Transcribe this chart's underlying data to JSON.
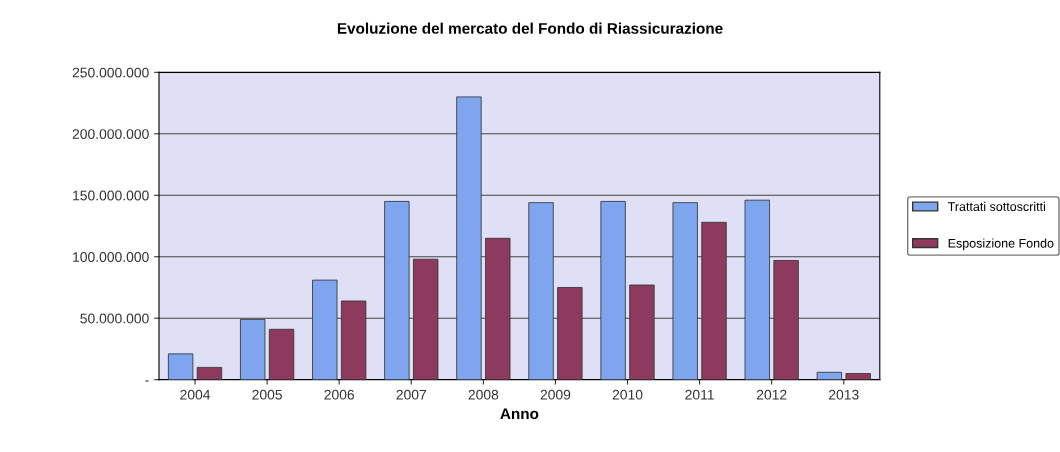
{
  "chart_data": {
    "type": "bar",
    "title": "Evoluzione del mercato del Fondo di Riassicurazione",
    "xlabel": "Anno",
    "categories": [
      "2004",
      "2005",
      "2006",
      "2007",
      "2008",
      "2009",
      "2010",
      "2011",
      "2012",
      "2013"
    ],
    "series": [
      {
        "name": "Trattati sottoscritti",
        "color": "#7ea6ee",
        "values": [
          21000000,
          49000000,
          81000000,
          145000000,
          230000000,
          144000000,
          145000000,
          144000000,
          146000000,
          6000000
        ]
      },
      {
        "name": "Esposizione Fondo",
        "color": "#8e3a5e",
        "values": [
          10000000,
          41000000,
          64000000,
          98000000,
          115000000,
          75000000,
          77000000,
          128000000,
          97000000,
          5000000
        ]
      }
    ],
    "ylim": [
      0,
      250000000
    ],
    "yticks": [
      {
        "value": 0,
        "label": "-"
      },
      {
        "value": 50000000,
        "label": "50.000.000"
      },
      {
        "value": 100000000,
        "label": "100.000.000"
      },
      {
        "value": 150000000,
        "label": "150.000.000"
      },
      {
        "value": 200000000,
        "label": "200.000.000"
      },
      {
        "value": 250000000,
        "label": "250.000.000"
      }
    ],
    "grid": "y",
    "legend": "right"
  }
}
